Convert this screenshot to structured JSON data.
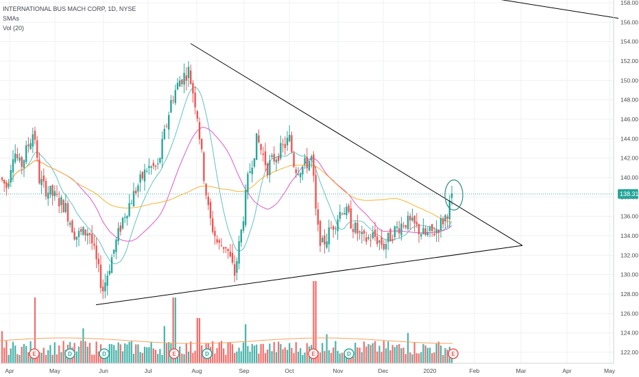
{
  "chart_data": {
    "type": "candlestick",
    "symbol_line": "INTERNATIONAL BUS MACH CORP, 1D, NYSE",
    "indicators": [
      "SMAs",
      "Vol (20)"
    ],
    "y_axis": {
      "min": 121,
      "max": 159,
      "ticks": [
        122,
        124,
        126,
        128,
        130,
        132,
        134,
        136,
        138,
        140,
        142,
        144,
        146,
        148,
        150,
        152,
        154,
        156,
        158
      ]
    },
    "x_axis": {
      "ticks": [
        "Apr",
        "May",
        "Jun",
        "Jul",
        "Aug",
        "Sep",
        "Oct",
        "Nov",
        "Dec",
        "2020",
        "Feb",
        "Mar",
        "Apr",
        "May"
      ]
    },
    "last_price": "138.31",
    "last_price_value": 138.31,
    "colors": {
      "up": "#26a69a",
      "down": "#ef5350",
      "sma_fast": "#5fc2c0",
      "sma_mid": "#e056c8",
      "sma_slow": "#f7b22d",
      "vol_ma": "#f5a25c",
      "trend": "#000000",
      "grid": "#eef0f3",
      "price_tag": "#26a69a"
    },
    "key_closes": [
      {
        "date": "Apr",
        "close": 140.0
      },
      {
        "date": "May",
        "close": 138.5
      },
      {
        "date": "late May",
        "close": 128.4
      },
      {
        "date": "Jul",
        "close": 150.0
      },
      {
        "date": "late Jul",
        "close": 151.5
      },
      {
        "date": "Aug",
        "close": 134.0
      },
      {
        "date": "mid Aug",
        "close": 131.0
      },
      {
        "date": "Sep",
        "close": 143.0
      },
      {
        "date": "Oct",
        "close": 142.0
      },
      {
        "date": "Nov",
        "close": 136.0
      },
      {
        "date": "Dec",
        "close": 134.0
      },
      {
        "date": "2020",
        "close": 135.0
      },
      {
        "date": "mid Jan",
        "close": 138.31
      }
    ],
    "trendlines": [
      {
        "name": "upper",
        "from": {
          "date": "mid Jul",
          "price": 153.8
        },
        "to": {
          "date": "late Feb",
          "price": 133.0
        }
      },
      {
        "name": "lower",
        "from": {
          "date": "late May",
          "price": 126.9
        },
        "to": {
          "date": "late Feb",
          "price": 133.0
        }
      },
      {
        "name": "top",
        "from": {
          "date": "Jan",
          "price": 159.2
        },
        "to": {
          "date": "May",
          "price": 156.4
        }
      }
    ],
    "earnings_markers": [
      "E",
      "D",
      "D",
      "E",
      "D",
      "E",
      "D",
      "E"
    ],
    "annotation": "circle around latest candles"
  }
}
